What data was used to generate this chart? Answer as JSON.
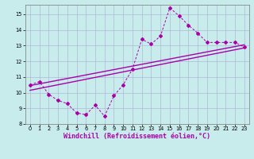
{
  "title": "",
  "xlabel": "Windchill (Refroidissement éolien,°C)",
  "ylabel": "",
  "xlim": [
    -0.5,
    23.5
  ],
  "ylim": [
    8,
    15.6
  ],
  "yticks": [
    8,
    9,
    10,
    11,
    12,
    13,
    14,
    15
  ],
  "xticks": [
    0,
    1,
    2,
    3,
    4,
    5,
    6,
    7,
    8,
    9,
    10,
    11,
    12,
    13,
    14,
    15,
    16,
    17,
    18,
    19,
    20,
    21,
    22,
    23
  ],
  "background_color": "#c8ecec",
  "grid_color": "#b0b8d8",
  "line_color": "#aa00aa",
  "line1_x": [
    0,
    1,
    2,
    3,
    4,
    5,
    6,
    7,
    8,
    9,
    10,
    11,
    12,
    13,
    14,
    15,
    16,
    17,
    18,
    19,
    20,
    21,
    22,
    23
  ],
  "line1_y": [
    10.5,
    10.7,
    9.9,
    9.5,
    9.3,
    8.7,
    8.6,
    9.2,
    8.5,
    9.8,
    10.5,
    11.5,
    13.4,
    13.1,
    13.6,
    15.4,
    14.9,
    14.3,
    13.8,
    13.2,
    13.2,
    13.2,
    13.2,
    12.9
  ],
  "line2_x": [
    0,
    23
  ],
  "line2_y": [
    10.45,
    13.05
  ],
  "line3_x": [
    0,
    23
  ],
  "line3_y": [
    10.15,
    12.85
  ],
  "tick_fontsize": 4.8,
  "xlabel_fontsize": 6.0
}
